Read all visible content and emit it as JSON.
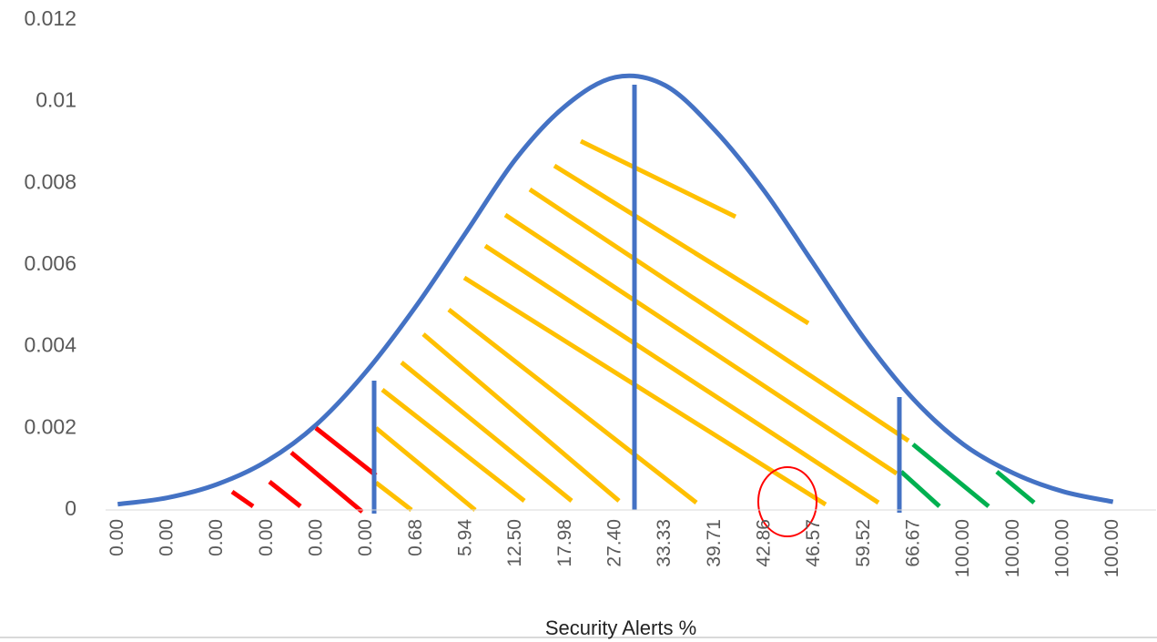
{
  "chart_data": {
    "type": "line",
    "x_label": "Security Alerts %",
    "categories": [
      "0.00",
      "0.00",
      "0.00",
      "0.00",
      "0.00",
      "0.00",
      "0.68",
      "5.94",
      "12.50",
      "17.98",
      "27.40",
      "33.33",
      "39.71",
      "42.86",
      "46.57",
      "59.52",
      "66.67",
      "100.00",
      "100.00",
      "100.00",
      "100.00"
    ],
    "series": [
      {
        "color": "#4472c4",
        "values": [
          0.00014,
          0.0003,
          0.00063,
          0.0012,
          0.0021,
          0.0034,
          0.005,
          0.0068,
          0.0086,
          0.0099,
          0.0106,
          0.0104,
          0.0093,
          0.0078,
          0.006,
          0.0042,
          0.0027,
          0.0016,
          0.0009,
          0.00045,
          0.0002
        ]
      }
    ],
    "ylim": [
      0,
      0.012
    ],
    "yticks": [
      0,
      0.002,
      0.004,
      0.006,
      0.008,
      0.01,
      0.012
    ]
  }
}
